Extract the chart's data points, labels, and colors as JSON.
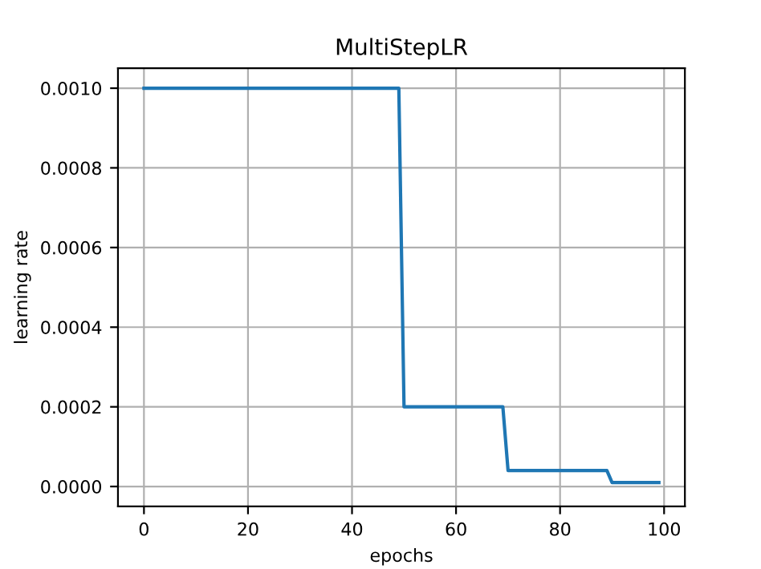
{
  "chart_data": {
    "type": "line",
    "title": "MultiStepLR",
    "xlabel": "epochs",
    "ylabel": "learning rate",
    "x": [
      0,
      49,
      50,
      69,
      70,
      89,
      90,
      99
    ],
    "series": [
      {
        "color": "#1f77b4",
        "values": [
          0.001,
          0.001,
          0.0002,
          0.0002,
          4e-05,
          4e-05,
          1e-05,
          1e-05
        ]
      }
    ],
    "xlim": [
      -5,
      104
    ],
    "xticks": [
      0,
      20,
      40,
      60,
      80,
      100
    ],
    "ylim": [
      -5e-05,
      0.00105
    ],
    "yticks": [
      {
        "value": 0,
        "label": "0.0000"
      },
      {
        "value": 0.0002,
        "label": "0.0002"
      },
      {
        "value": 0.0004,
        "label": "0.0004"
      },
      {
        "value": 0.0006,
        "label": "0.0006"
      },
      {
        "value": 0.0008,
        "label": "0.0008"
      },
      {
        "value": 0.001,
        "label": "0.0010"
      }
    ],
    "grid": true
  }
}
